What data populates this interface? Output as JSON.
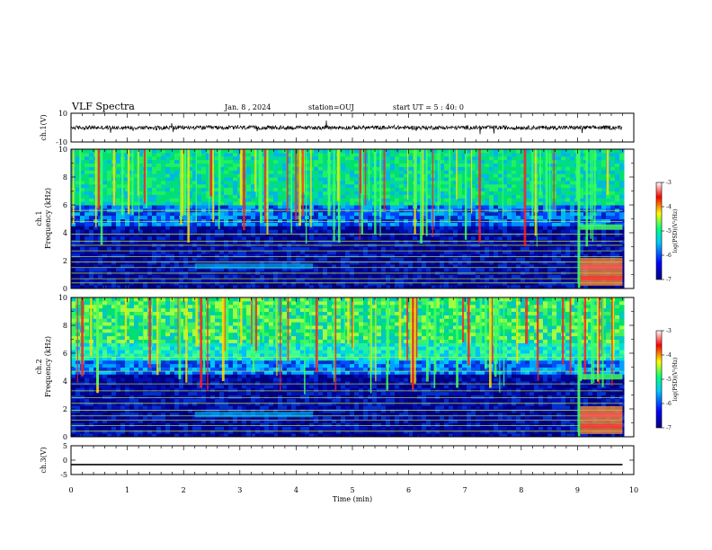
{
  "header": {
    "title": "VLF Spectra",
    "date": "Jan. 8 , 2024",
    "station": "station=OUJ",
    "start_ut": "start UT =  5 : 40: 0"
  },
  "chart_data": [
    {
      "type": "line",
      "panel": "ch1-waveform",
      "ylabel": "ch.1(V)",
      "ylim": [
        -10,
        10
      ],
      "yticks": [
        10,
        -10
      ],
      "ytick_labels": [
        "10",
        "-10"
      ],
      "xlim": [
        0,
        10
      ],
      "series": [
        {
          "values_note": "",
          "x": [
            0,
            9.8
          ],
          "y_band": [
            -1.0,
            1.0
          ],
          "color": "#000000"
        }
      ]
    },
    {
      "type": "heatmap",
      "panel": "ch1-spectrogram",
      "ylabel": "ch.1\nFrequency (kHz)",
      "ylabel_lines": [
        "ch.1",
        "Frequency (kHz)"
      ],
      "ylim": [
        0,
        10
      ],
      "yticks": [
        0,
        2,
        4,
        6,
        8,
        10
      ],
      "ytick_labels": [
        "0",
        "2",
        "4",
        "6",
        "8",
        "10"
      ],
      "xlim": [
        0,
        10
      ],
      "data_end_min": 9.8,
      "colorbar": {
        "label": "log(PSD)(V²/Hz)",
        "range": [
          -7,
          -3
        ],
        "ticks": [
          -3,
          -4,
          -5,
          -6,
          -7
        ],
        "tick_labels": [
          "-3",
          "-4",
          "-5",
          "-6",
          "-7"
        ],
        "colors": [
          "#00007a",
          "#0000ff",
          "#00c8ff",
          "#00ff80",
          "#ffff00",
          "#ff0000",
          "#ffffff"
        ]
      }
    },
    {
      "type": "heatmap",
      "panel": "ch2-spectrogram",
      "ylabel_lines": [
        "ch.2",
        "Frequency (kHz)"
      ],
      "ylim": [
        0,
        10
      ],
      "yticks": [
        0,
        2,
        4,
        6,
        8,
        10
      ],
      "ytick_labels": [
        "0",
        "2",
        "4",
        "6",
        "8",
        "10"
      ],
      "xlim": [
        0,
        10
      ],
      "data_end_min": 9.8,
      "colorbar": {
        "label": "log(PSD)(V²/Hz)",
        "range": [
          -7,
          -3
        ],
        "ticks": [
          -3,
          -4,
          -5,
          -6,
          -7
        ],
        "tick_labels": [
          "-3",
          "-4",
          "-5",
          "-6",
          "-7"
        ],
        "colors": [
          "#00007a",
          "#0000ff",
          "#00c8ff",
          "#00ff80",
          "#ffff00",
          "#ff0000",
          "#ffffff"
        ]
      }
    },
    {
      "type": "line",
      "panel": "ch3-waveform",
      "ylabel": "ch.3(V)",
      "ylim": [
        -5,
        5
      ],
      "yticks": [
        5,
        0,
        -5
      ],
      "ytick_labels": [
        "5",
        "0",
        "-5"
      ],
      "xlim": [
        0,
        10
      ],
      "series": [
        {
          "x": [
            0,
            9.8
          ],
          "y_band": [
            -1.8,
            -1.3
          ],
          "color": "#000000"
        }
      ]
    }
  ],
  "xaxis": {
    "xlabel": "Time (min)",
    "ticks": [
      0,
      1,
      2,
      3,
      4,
      5,
      6,
      7,
      8,
      9,
      10
    ],
    "tick_labels": [
      "0",
      "1",
      "2",
      "3",
      "4",
      "5",
      "6",
      "7",
      "8",
      "9",
      "10"
    ]
  }
}
